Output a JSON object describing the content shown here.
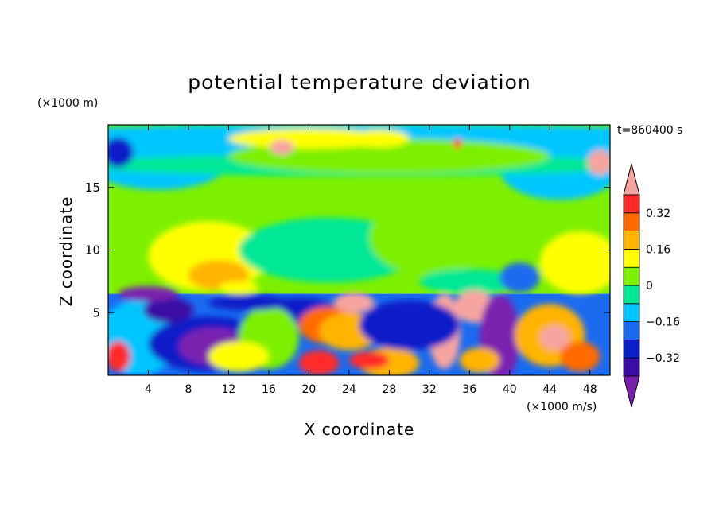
{
  "chart_data": {
    "type": "heatmap",
    "title": "potential temperature deviation",
    "xlabel": "X coordinate",
    "ylabel": "Z coordinate",
    "x_unit": "(×1000 m/s)",
    "y_unit": "(×1000 m)",
    "time_label": "t=860400 s",
    "xlim": [
      0,
      50
    ],
    "ylim": [
      0,
      20
    ],
    "x_ticks": [
      4,
      8,
      12,
      16,
      20,
      24,
      28,
      32,
      36,
      40,
      44,
      48
    ],
    "y_ticks": [
      5,
      10,
      15
    ],
    "colorbar": {
      "levels": [
        -0.4,
        -0.32,
        -0.24,
        -0.16,
        -0.08,
        0,
        0.08,
        0.16,
        0.24,
        0.32,
        0.4
      ],
      "colors": [
        "#7a20b0",
        "#3a0da6",
        "#0a1fc8",
        "#1a6bf0",
        "#00c6ff",
        "#00e896",
        "#7df000",
        "#ffff00",
        "#ffb400",
        "#ff6a00",
        "#ff2a2a",
        "#f6a4a0"
      ],
      "tick_labels": [
        "0.32",
        "0.16",
        "0",
        "−0.16",
        "−0.32"
      ],
      "tick_values": [
        0.32,
        0.16,
        0,
        -0.16,
        -0.32
      ]
    },
    "grid": false,
    "legend": "colorbar-right"
  }
}
